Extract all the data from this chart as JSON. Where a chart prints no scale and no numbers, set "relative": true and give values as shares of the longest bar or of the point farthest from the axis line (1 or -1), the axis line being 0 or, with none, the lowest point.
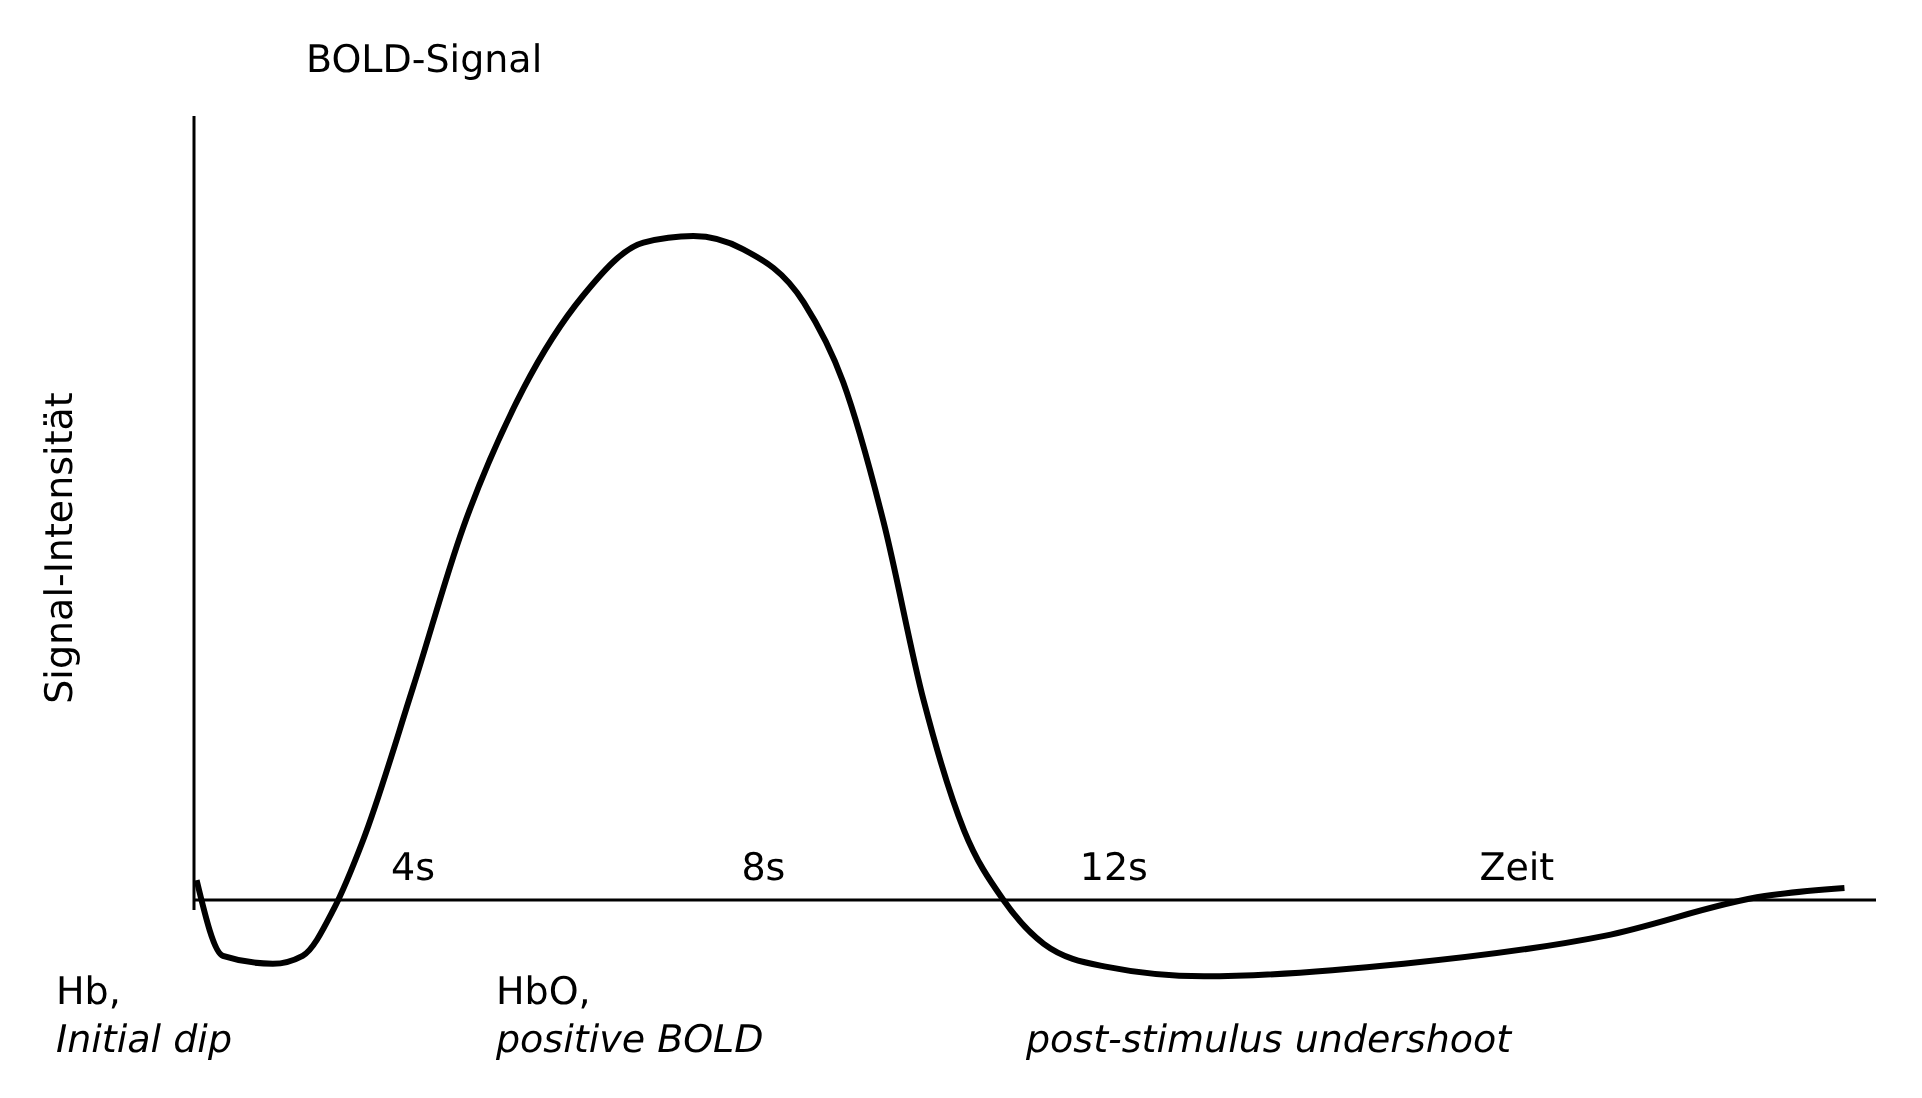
{
  "chart_data": {
    "type": "line",
    "title": "BOLD-Signal",
    "xlabel": "Zeit",
    "ylabel": "Signal-Intensität",
    "relative": true,
    "xlim": [
      1.5,
      20.7
    ],
    "xticks": [
      {
        "value": 4,
        "label": "4s"
      },
      {
        "value": 8,
        "label": "8s"
      },
      {
        "value": 12,
        "label": "12s"
      }
    ],
    "series": [
      {
        "color": "#000000",
        "x": [
          1.53,
          1.83,
          2.4,
          2.74,
          3.09,
          3.43,
          4.0,
          4.57,
          5.26,
          5.94,
          6.63,
          7.2,
          7.77,
          8.46,
          8.91,
          9.37,
          9.83,
          10.29,
          10.74,
          11.2,
          11.89,
          13.03,
          15.31,
          17.6,
          19.43,
          20.34
        ],
        "values": [
          0.03,
          -0.084,
          -0.096,
          -0.084,
          -0.015,
          0.09,
          0.32,
          0.56,
          0.77,
          0.91,
          0.99,
          1.0,
          0.98,
          0.9,
          0.78,
          0.57,
          0.3,
          0.105,
          0,
          -0.066,
          -0.1,
          -0.115,
          -0.096,
          -0.054,
          0.006,
          0.018
        ]
      }
    ],
    "annotations": [
      "Hb,\nInitial dip",
      "HbO,\npositive BOLD",
      "post-stimulus undershoot"
    ]
  }
}
